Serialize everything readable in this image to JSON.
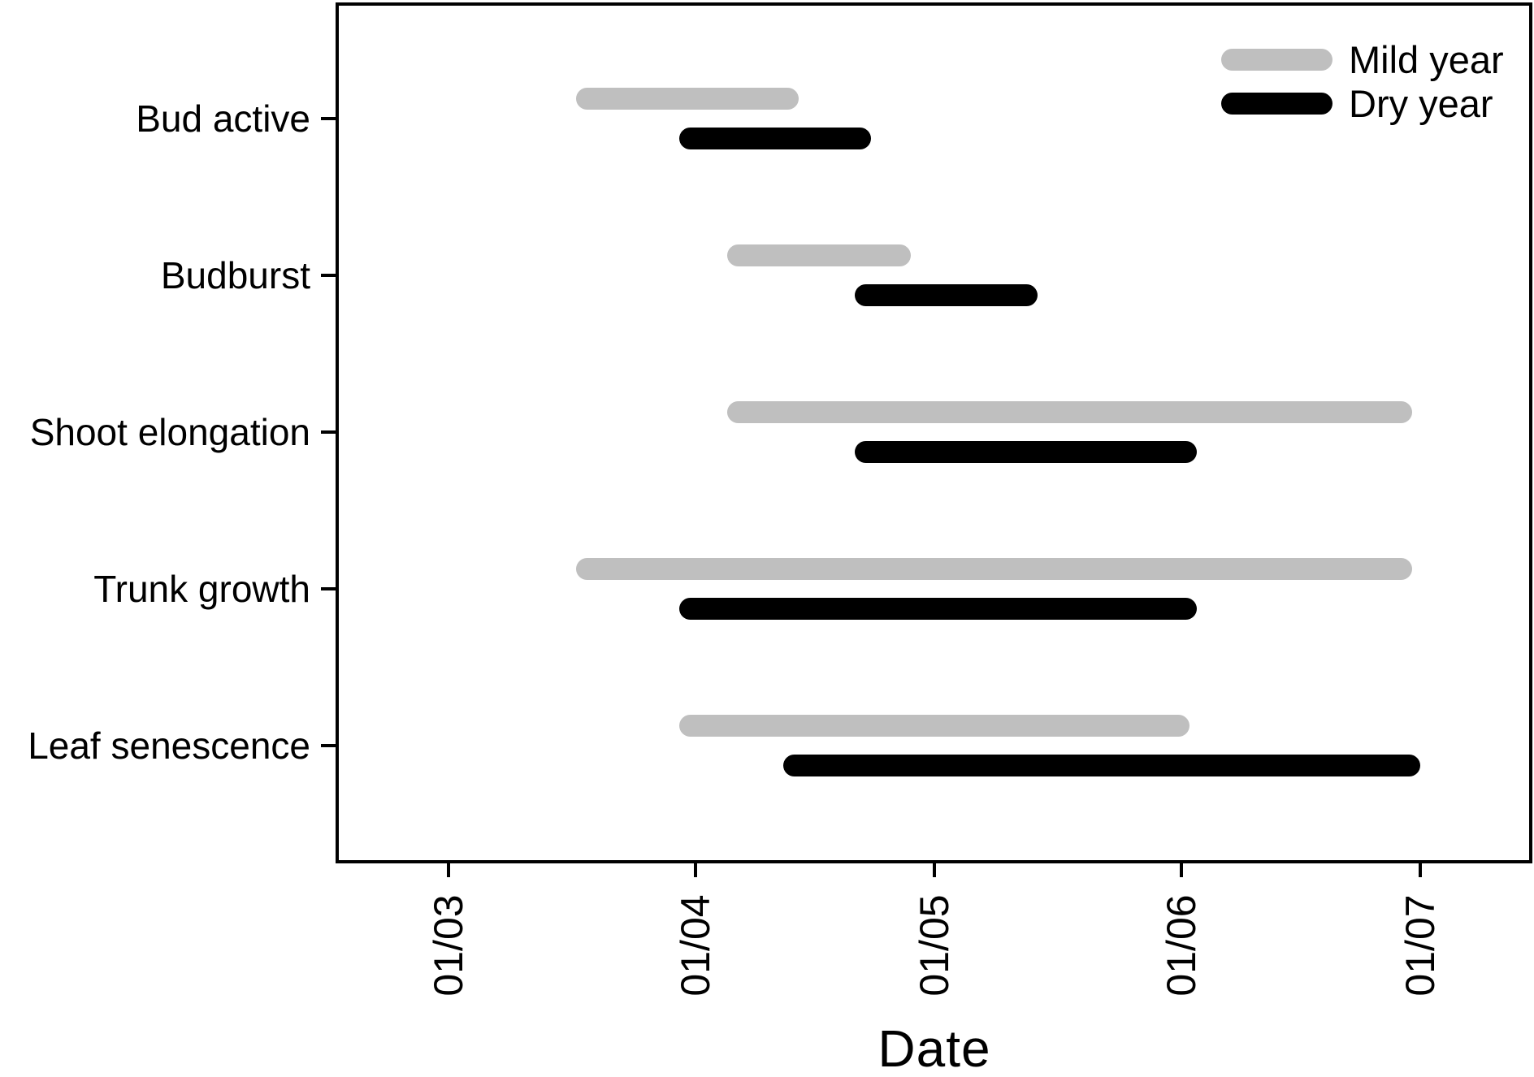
{
  "chart_data": {
    "type": "bar",
    "subtype": "horizontal date-range (gantt-style phenophase chart)",
    "title": "",
    "xlabel": "Date",
    "background": "#FFFFFF",
    "frame_color": "#000000",
    "grid": false,
    "categories": [
      "Bud active",
      "Budburst",
      "Shoot elongation",
      "Trunk growth",
      "Leaf senescence"
    ],
    "axis": {
      "min_date": "15/02",
      "max_date": "15/07",
      "total_days": 150,
      "tick_label_rotation_deg": -90,
      "ticks": [
        {
          "label": "01/03",
          "day": 14
        },
        {
          "label": "01/04",
          "day": 45
        },
        {
          "label": "01/05",
          "day": 75
        },
        {
          "label": "01/06",
          "day": 106
        },
        {
          "label": "01/07",
          "day": 136
        }
      ]
    },
    "legend": {
      "position": "top-right",
      "items": [
        "Mild year",
        "Dry year"
      ]
    },
    "series": [
      {
        "name": "Mild year",
        "color": "#BFBFBF",
        "position_in_row": "upper",
        "intervals": [
          {
            "category": "Bud active",
            "start": "17/03",
            "end": "14/04",
            "start_day": 30,
            "end_day": 58
          },
          {
            "category": "Budburst",
            "start": "05/04",
            "end": "28/04",
            "start_day": 49,
            "end_day": 72
          },
          {
            "category": "Shoot elongation",
            "start": "05/04",
            "end": "30/06",
            "start_day": 49,
            "end_day": 135
          },
          {
            "category": "Trunk growth",
            "start": "17/03",
            "end": "30/06",
            "start_day": 30,
            "end_day": 135
          },
          {
            "category": "Leaf senescence",
            "start": "30/03",
            "end": "02/06",
            "start_day": 43,
            "end_day": 107
          }
        ]
      },
      {
        "name": "Dry year",
        "color": "#000000",
        "position_in_row": "lower",
        "intervals": [
          {
            "category": "Bud active",
            "start": "30/03",
            "end": "23/04",
            "start_day": 43,
            "end_day": 67
          },
          {
            "category": "Budburst",
            "start": "21/04",
            "end": "14/05",
            "start_day": 65,
            "end_day": 88
          },
          {
            "category": "Shoot elongation",
            "start": "21/04",
            "end": "03/06",
            "start_day": 65,
            "end_day": 108
          },
          {
            "category": "Trunk growth",
            "start": "30/03",
            "end": "03/06",
            "start_day": 43,
            "end_day": 108
          },
          {
            "category": "Leaf senescence",
            "start": "12/04",
            "end": "01/07",
            "start_day": 56,
            "end_day": 136
          }
        ]
      }
    ]
  }
}
